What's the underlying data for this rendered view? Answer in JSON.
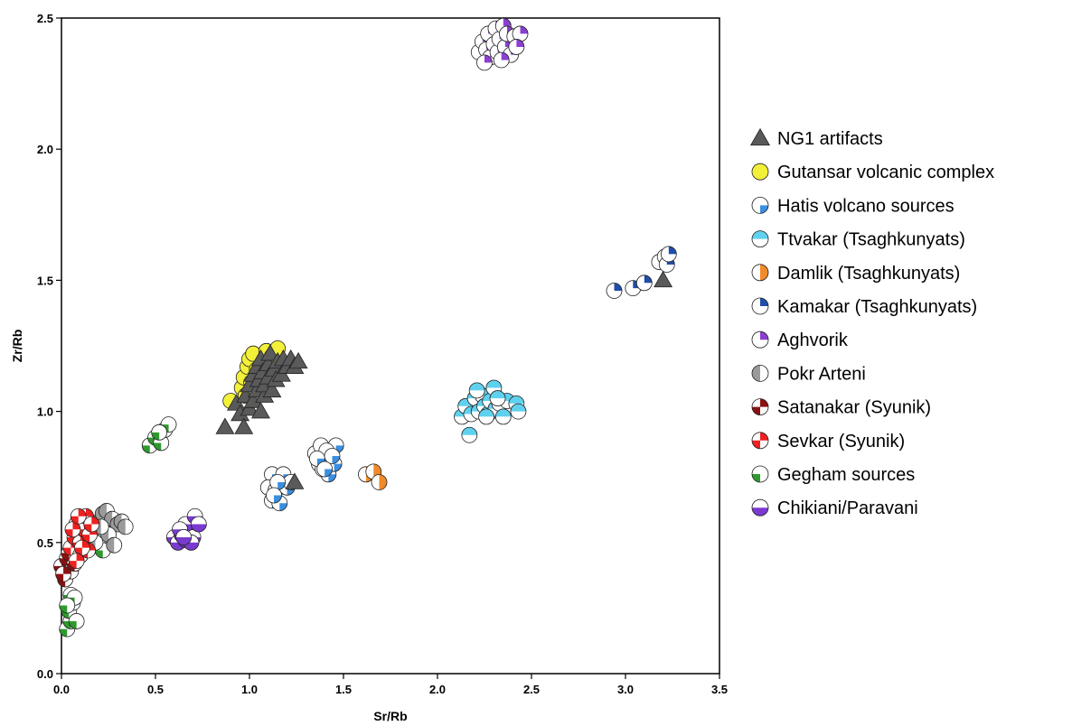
{
  "chart_data": {
    "type": "scatter",
    "title": "",
    "xlabel": "Sr/Rb",
    "ylabel": "Zr/Rb",
    "xlim": [
      0,
      3.5
    ],
    "ylim": [
      0,
      2.5
    ],
    "xticks": [
      "0.0",
      "0.5",
      "1.0",
      "1.5",
      "2.0",
      "2.5",
      "3.0",
      "3.5"
    ],
    "yticks": [
      "0.0",
      "0.5",
      "1.0",
      "1.5",
      "2.0",
      "2.5"
    ],
    "grid": false,
    "legend_position": "right",
    "series": [
      {
        "name": "NG1 artifacts",
        "marker": "triangle",
        "fill": "#5a5a5a",
        "points": [
          [
            0.87,
            0.94
          ],
          [
            0.93,
            1.03
          ],
          [
            0.95,
            0.99
          ],
          [
            0.97,
            0.94
          ],
          [
            0.98,
            1.06
          ],
          [
            1.0,
            1.01
          ],
          [
            1.0,
            1.1
          ],
          [
            1.02,
            1.04
          ],
          [
            1.02,
            1.14
          ],
          [
            1.04,
            1.08
          ],
          [
            1.04,
            1.17
          ],
          [
            1.05,
            1.12
          ],
          [
            1.06,
            1.0
          ],
          [
            1.06,
            1.2
          ],
          [
            1.07,
            1.15
          ],
          [
            1.08,
            1.06
          ],
          [
            1.08,
            1.1
          ],
          [
            1.1,
            1.18
          ],
          [
            1.1,
            1.13
          ],
          [
            1.11,
            1.22
          ],
          [
            1.12,
            1.08
          ],
          [
            1.13,
            1.16
          ],
          [
            1.14,
            1.12
          ],
          [
            1.15,
            1.19
          ],
          [
            1.17,
            1.14
          ],
          [
            1.18,
            1.2
          ],
          [
            1.2,
            1.17
          ],
          [
            1.22,
            1.2
          ],
          [
            1.24,
            1.17
          ],
          [
            1.26,
            1.19
          ],
          [
            1.24,
            0.73
          ],
          [
            3.2,
            1.5
          ]
        ]
      },
      {
        "name": "Gutansar volcanic complex",
        "marker": "circle-full",
        "fill": "#f3f03a",
        "points": [
          [
            0.9,
            1.04
          ],
          [
            0.96,
            1.09
          ],
          [
            0.97,
            1.13
          ],
          [
            0.99,
            1.17
          ],
          [
            1.0,
            1.2
          ],
          [
            1.02,
            1.22
          ],
          [
            1.04,
            1.16
          ],
          [
            1.06,
            1.12
          ],
          [
            1.08,
            1.19
          ],
          [
            1.09,
            1.23
          ],
          [
            1.12,
            1.21
          ],
          [
            1.15,
            1.24
          ],
          [
            1.01,
            1.11
          ],
          [
            0.98,
            1.06
          ]
        ]
      },
      {
        "name": "Hatis volcano sources",
        "marker": "quarter-br",
        "fill": "#3a8fe0",
        "points": [
          [
            1.12,
            0.76
          ],
          [
            1.12,
            0.66
          ],
          [
            1.1,
            0.71
          ],
          [
            1.14,
            0.7
          ],
          [
            1.16,
            0.65
          ],
          [
            1.18,
            0.76
          ],
          [
            1.2,
            0.71
          ],
          [
            1.22,
            0.73
          ],
          [
            1.15,
            0.73
          ],
          [
            1.13,
            0.68
          ],
          [
            1.35,
            0.84
          ],
          [
            1.37,
            0.8
          ],
          [
            1.38,
            0.87
          ],
          [
            1.4,
            0.82
          ],
          [
            1.42,
            0.76
          ],
          [
            1.43,
            0.84
          ],
          [
            1.45,
            0.8
          ],
          [
            1.46,
            0.87
          ],
          [
            1.39,
            0.78
          ],
          [
            1.41,
            0.85
          ],
          [
            1.36,
            0.82
          ],
          [
            1.44,
            0.83
          ],
          [
            1.4,
            0.78
          ]
        ]
      },
      {
        "name": "Ttvakar (Tsaghkunyats)",
        "marker": "half-top",
        "fill": "#5fd1ee",
        "points": [
          [
            2.13,
            0.98
          ],
          [
            2.15,
            1.02
          ],
          [
            2.17,
            0.91
          ],
          [
            2.18,
            0.99
          ],
          [
            2.2,
            1.05
          ],
          [
            2.22,
            1.0
          ],
          [
            2.24,
            1.06
          ],
          [
            2.25,
            1.02
          ],
          [
            2.27,
            0.99
          ],
          [
            2.28,
            1.04
          ],
          [
            2.3,
            1.09
          ],
          [
            2.31,
            1.01
          ],
          [
            2.33,
            1.03
          ],
          [
            2.35,
            0.98
          ],
          [
            2.37,
            1.04
          ],
          [
            2.42,
            1.03
          ],
          [
            2.43,
            1.0
          ],
          [
            2.21,
            1.08
          ],
          [
            2.26,
            0.98
          ],
          [
            2.32,
            1.05
          ]
        ]
      },
      {
        "name": "Damlik (Tsaghkunyats)",
        "marker": "half-right",
        "fill": "#f08a2a",
        "points": [
          [
            1.62,
            0.76
          ],
          [
            1.66,
            0.77
          ],
          [
            1.69,
            0.73
          ]
        ]
      },
      {
        "name": "Kamakar (Tsaghkunyats)",
        "marker": "quarter-tr",
        "fill": "#1f4da8",
        "points": [
          [
            2.94,
            1.46
          ],
          [
            3.04,
            1.47
          ],
          [
            3.1,
            1.49
          ],
          [
            3.18,
            1.57
          ],
          [
            3.21,
            1.59
          ],
          [
            3.22,
            1.56
          ],
          [
            3.23,
            1.6
          ]
        ]
      },
      {
        "name": "Aghvorik",
        "marker": "quarter-tr",
        "fill": "#8b3fd0",
        "points": [
          [
            2.22,
            2.37
          ],
          [
            2.24,
            2.41
          ],
          [
            2.26,
            2.38
          ],
          [
            2.27,
            2.44
          ],
          [
            2.28,
            2.35
          ],
          [
            2.3,
            2.4
          ],
          [
            2.31,
            2.46
          ],
          [
            2.32,
            2.37
          ],
          [
            2.33,
            2.42
          ],
          [
            2.35,
            2.47
          ],
          [
            2.36,
            2.39
          ],
          [
            2.37,
            2.44
          ],
          [
            2.39,
            2.36
          ],
          [
            2.41,
            2.43
          ],
          [
            2.44,
            2.44
          ],
          [
            2.25,
            2.33
          ],
          [
            2.34,
            2.34
          ],
          [
            2.42,
            2.39
          ]
        ]
      },
      {
        "name": "Pokr Arteni",
        "marker": "half-left",
        "fill": "#9a9a9a",
        "points": [
          [
            0.17,
            0.55
          ],
          [
            0.2,
            0.58
          ],
          [
            0.22,
            0.61
          ],
          [
            0.24,
            0.62
          ],
          [
            0.27,
            0.59
          ],
          [
            0.3,
            0.57
          ],
          [
            0.32,
            0.58
          ],
          [
            0.25,
            0.53
          ],
          [
            0.28,
            0.49
          ],
          [
            0.18,
            0.5
          ],
          [
            0.21,
            0.56
          ],
          [
            0.34,
            0.56
          ]
        ]
      },
      {
        "name": "Satanakar (Syunik)",
        "marker": "quarters-alt",
        "fill": "#8c1010",
        "points": [
          [
            0.0,
            0.41
          ],
          [
            0.02,
            0.36
          ],
          [
            0.03,
            0.44
          ],
          [
            0.05,
            0.39
          ],
          [
            0.07,
            0.42
          ],
          [
            0.04,
            0.46
          ],
          [
            0.01,
            0.38
          ]
        ]
      },
      {
        "name": "Sevkar (Syunik)",
        "marker": "quarters-alt",
        "fill": "#ee2020",
        "points": [
          [
            0.05,
            0.48
          ],
          [
            0.07,
            0.52
          ],
          [
            0.08,
            0.57
          ],
          [
            0.1,
            0.5
          ],
          [
            0.12,
            0.55
          ],
          [
            0.13,
            0.6
          ],
          [
            0.15,
            0.53
          ],
          [
            0.1,
            0.45
          ],
          [
            0.06,
            0.55
          ],
          [
            0.14,
            0.47
          ],
          [
            0.09,
            0.6
          ],
          [
            0.11,
            0.48
          ],
          [
            0.16,
            0.57
          ],
          [
            0.08,
            0.43
          ]
        ]
      },
      {
        "name": "Gegham sources",
        "marker": "quarter-bl",
        "fill": "#2e9a2e",
        "points": [
          [
            0.47,
            0.87
          ],
          [
            0.5,
            0.9
          ],
          [
            0.53,
            0.88
          ],
          [
            0.55,
            0.93
          ],
          [
            0.57,
            0.95
          ],
          [
            0.52,
            0.92
          ],
          [
            0.03,
            0.17
          ],
          [
            0.05,
            0.2
          ],
          [
            0.04,
            0.24
          ],
          [
            0.06,
            0.27
          ],
          [
            0.05,
            0.3
          ],
          [
            0.07,
            0.29
          ],
          [
            0.03,
            0.26
          ],
          [
            0.08,
            0.2
          ],
          [
            0.1,
            0.45
          ],
          [
            0.15,
            0.48
          ],
          [
            0.2,
            0.52
          ],
          [
            0.22,
            0.47
          ],
          [
            0.18,
            0.54
          ],
          [
            0.08,
            0.5
          ]
        ]
      },
      {
        "name": "Chikiani/Paravani",
        "marker": "half-bottom",
        "fill": "#7a3ad0",
        "points": [
          [
            0.6,
            0.52
          ],
          [
            0.62,
            0.5
          ],
          [
            0.64,
            0.53
          ],
          [
            0.66,
            0.51
          ],
          [
            0.68,
            0.55
          ],
          [
            0.7,
            0.52
          ],
          [
            0.66,
            0.57
          ],
          [
            0.63,
            0.55
          ],
          [
            0.71,
            0.6
          ],
          [
            0.73,
            0.57
          ],
          [
            0.69,
            0.5
          ],
          [
            0.65,
            0.52
          ]
        ]
      }
    ]
  }
}
